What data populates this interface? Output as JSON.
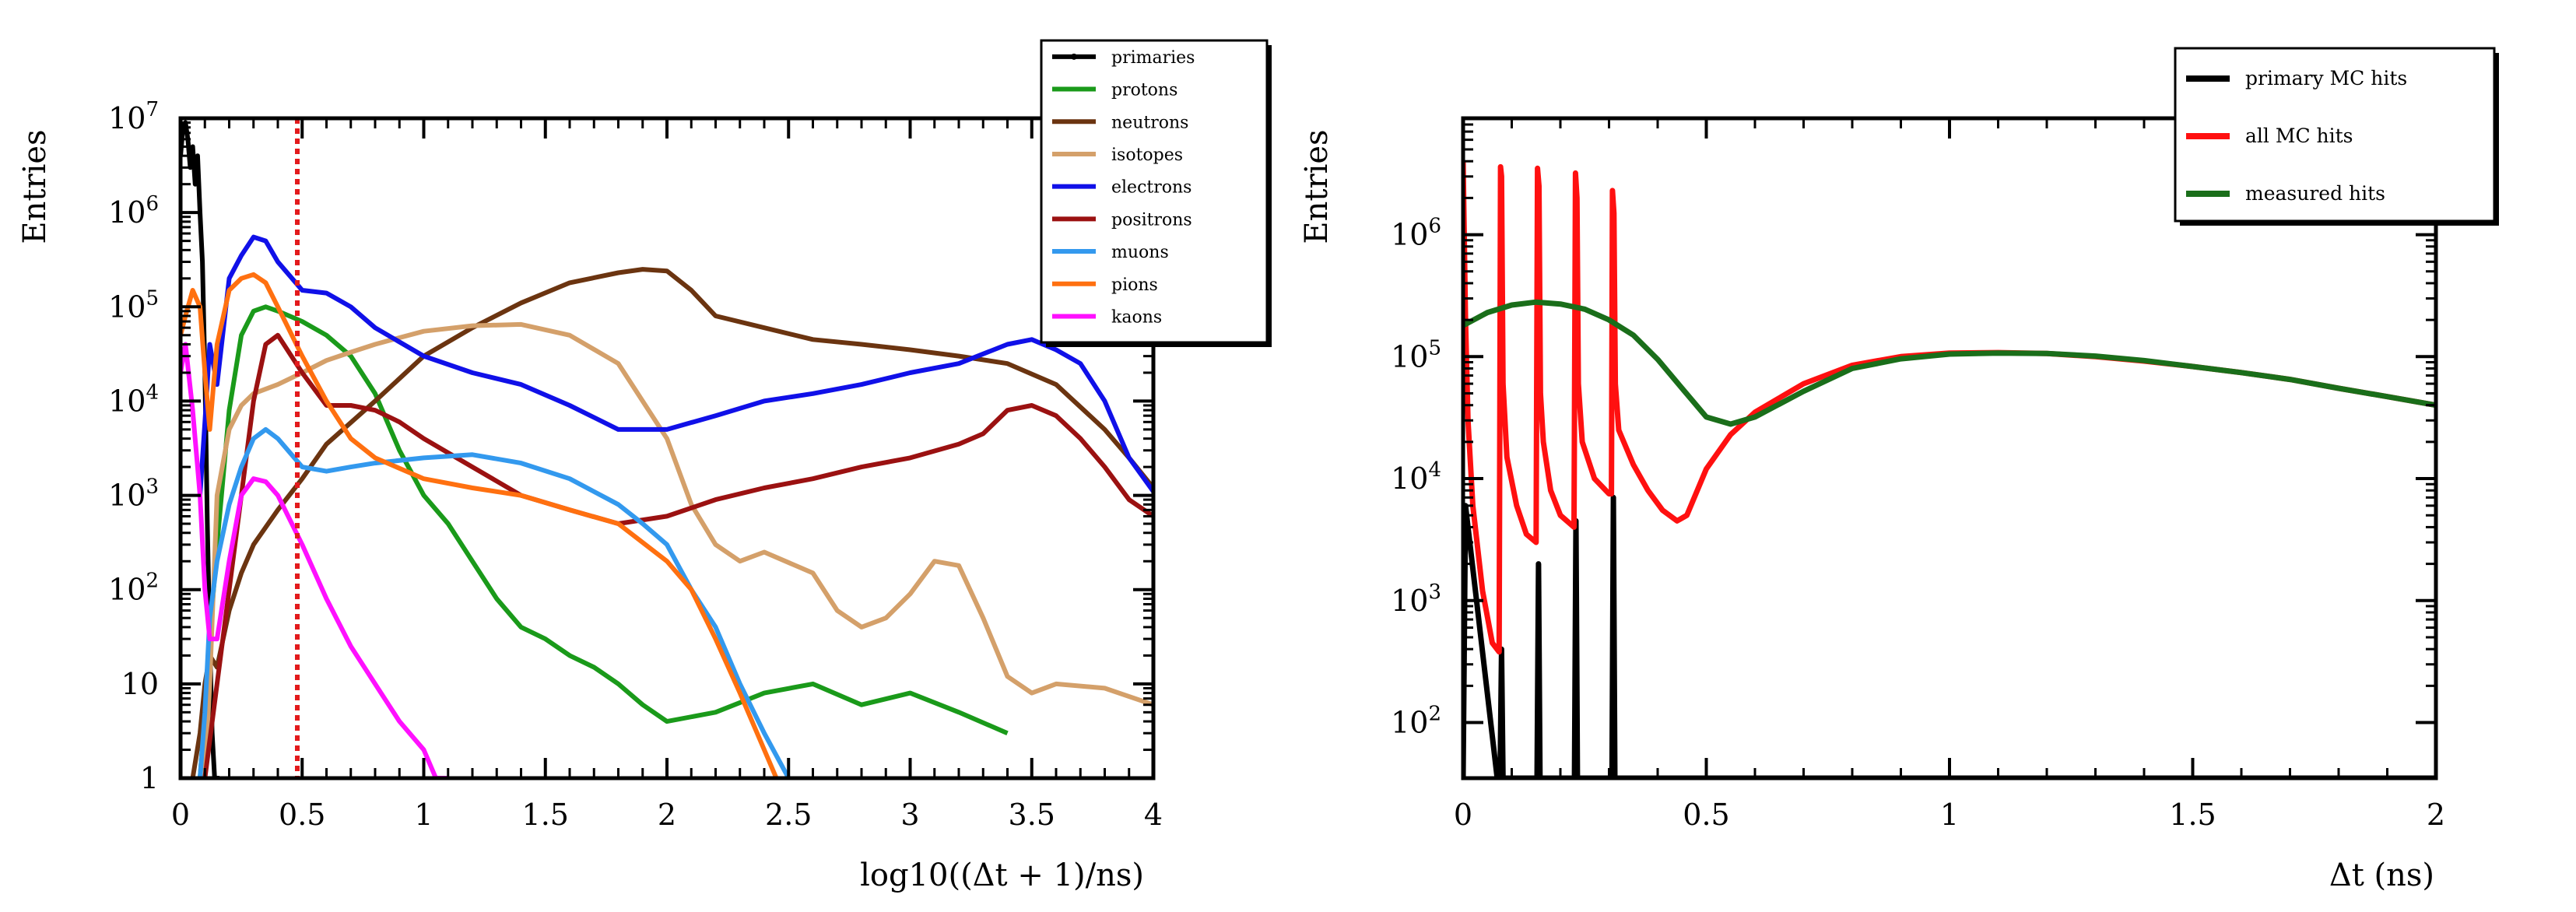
{
  "chart_data": [
    {
      "type": "line",
      "xlabel": "log10((Δt + 1)/ns)",
      "ylabel": "Entries",
      "xlim": [
        0,
        4
      ],
      "ylim": [
        1,
        10000000
      ],
      "yscale": "log",
      "xticks": [
        "0",
        "0.5",
        "1",
        "1.5",
        "2",
        "2.5",
        "3",
        "3.5",
        "4"
      ],
      "yticks": [
        {
          "value": 1,
          "label": "1"
        },
        {
          "value": 10,
          "label": "10"
        },
        {
          "value": 100,
          "label": "10^2"
        },
        {
          "value": 1000,
          "label": "10^3"
        },
        {
          "value": 10000,
          "label": "10^4"
        },
        {
          "value": 100000,
          "label": "10^5"
        },
        {
          "value": 1000000,
          "label": "10^6"
        },
        {
          "value": 10000000,
          "label": "10^7"
        }
      ],
      "legend_position": "top-right",
      "cut_line": {
        "x": 0.48,
        "color": "#e31a1c",
        "style": "dotted"
      },
      "series": [
        {
          "name": "primaries",
          "color": "#000000",
          "marker": true,
          "x": [
            0.0,
            0.01,
            0.02,
            0.03,
            0.04,
            0.05,
            0.06,
            0.07,
            0.08,
            0.09,
            0.1,
            0.11,
            0.12,
            0.13,
            0.14,
            0.15,
            0.16
          ],
          "y": [
            4000000,
            8000000,
            9000000,
            6000000,
            3000000,
            5000000,
            2000000,
            4000000,
            1000000,
            300000,
            20000,
            500,
            30,
            3,
            1,
            1,
            1
          ]
        },
        {
          "name": "protons",
          "color": "#1a9a1a",
          "x": [
            0.08,
            0.1,
            0.12,
            0.15,
            0.2,
            0.25,
            0.3,
            0.35,
            0.4,
            0.5,
            0.6,
            0.7,
            0.8,
            0.9,
            1.0,
            1.1,
            1.2,
            1.3,
            1.4,
            1.5,
            1.6,
            1.7,
            1.8,
            1.9,
            2.0,
            2.2,
            2.4,
            2.6,
            2.8,
            3.0,
            3.2,
            3.4
          ],
          "y": [
            1,
            5,
            30,
            300,
            8000,
            50000,
            90000,
            100000,
            90000,
            70000,
            50000,
            30000,
            12000,
            3000,
            1000,
            500,
            200,
            80,
            40,
            30,
            20,
            15,
            10,
            6,
            4,
            5,
            8,
            10,
            6,
            8,
            5,
            3
          ]
        },
        {
          "name": "neutrons",
          "color": "#6b3410",
          "x": [
            0.05,
            0.08,
            0.1,
            0.12,
            0.15,
            0.2,
            0.25,
            0.3,
            0.4,
            0.5,
            0.6,
            0.8,
            1.0,
            1.2,
            1.4,
            1.6,
            1.8,
            1.9,
            2.0,
            2.1,
            2.2,
            2.4,
            2.6,
            2.8,
            3.0,
            3.2,
            3.4,
            3.6,
            3.8,
            3.9,
            4.0
          ],
          "y": [
            1,
            3,
            10,
            20,
            15,
            60,
            150,
            300,
            700,
            1500,
            3500,
            10000,
            30000,
            60000,
            110000,
            180000,
            230000,
            250000,
            240000,
            150000,
            80000,
            60000,
            45000,
            40000,
            35000,
            30000,
            25000,
            15000,
            5000,
            2500,
            1200
          ]
        },
        {
          "name": "isotopes",
          "color": "#d4a06a",
          "x": [
            0.1,
            0.12,
            0.15,
            0.2,
            0.25,
            0.3,
            0.4,
            0.5,
            0.6,
            0.7,
            0.8,
            0.9,
            1.0,
            1.2,
            1.4,
            1.6,
            1.8,
            2.0,
            2.1,
            2.2,
            2.3,
            2.4,
            2.6,
            2.7,
            2.8,
            2.9,
            3.0,
            3.1,
            3.2,
            3.3,
            3.4,
            3.5,
            3.6,
            3.8,
            4.0
          ],
          "y": [
            1,
            10,
            1000,
            5000,
            9000,
            12000,
            15000,
            20000,
            27000,
            33000,
            40000,
            47000,
            55000,
            63000,
            65000,
            50000,
            25000,
            4000,
            800,
            300,
            200,
            250,
            150,
            60,
            40,
            50,
            90,
            200,
            180,
            50,
            12,
            8,
            10,
            9,
            6
          ]
        },
        {
          "name": "electrons",
          "color": "#1010e8",
          "x": [
            0.08,
            0.1,
            0.12,
            0.15,
            0.2,
            0.25,
            0.3,
            0.35,
            0.4,
            0.5,
            0.6,
            0.7,
            0.8,
            1.0,
            1.2,
            1.4,
            1.6,
            1.8,
            2.0,
            2.2,
            2.4,
            2.6,
            2.8,
            3.0,
            3.2,
            3.4,
            3.5,
            3.6,
            3.7,
            3.8,
            3.9,
            4.0
          ],
          "y": [
            1000,
            6000,
            40000,
            15000,
            200000,
            350000,
            550000,
            500000,
            300000,
            150000,
            140000,
            100000,
            60000,
            30000,
            20000,
            15000,
            9000,
            5000,
            5000,
            7000,
            10000,
            12000,
            15000,
            20000,
            25000,
            40000,
            45000,
            35000,
            25000,
            10000,
            2500,
            1100
          ]
        },
        {
          "name": "positrons",
          "color": "#9b1111",
          "x": [
            0.1,
            0.15,
            0.2,
            0.25,
            0.3,
            0.35,
            0.4,
            0.5,
            0.6,
            0.7,
            0.8,
            0.9,
            1.0,
            1.2,
            1.4,
            1.6,
            1.8,
            2.0,
            2.2,
            2.4,
            2.6,
            2.8,
            3.0,
            3.2,
            3.3,
            3.4,
            3.5,
            3.6,
            3.7,
            3.8,
            3.9,
            4.0
          ],
          "y": [
            1,
            10,
            100,
            1000,
            10000,
            40000,
            50000,
            20000,
            9000,
            9000,
            8000,
            6000,
            4000,
            2000,
            1000,
            700,
            500,
            600,
            900,
            1200,
            1500,
            2000,
            2500,
            3500,
            4500,
            8000,
            9000,
            7000,
            4000,
            2000,
            900,
            600
          ]
        },
        {
          "name": "muons",
          "color": "#3399ee",
          "x": [
            0.08,
            0.1,
            0.12,
            0.15,
            0.2,
            0.25,
            0.3,
            0.35,
            0.4,
            0.5,
            0.6,
            0.7,
            0.8,
            1.0,
            1.2,
            1.4,
            1.6,
            1.8,
            1.9,
            2.0,
            2.1,
            2.2,
            2.3,
            2.4,
            2.5
          ],
          "y": [
            1,
            5,
            50,
            200,
            800,
            2000,
            4000,
            5000,
            4000,
            2000,
            1800,
            2000,
            2200,
            2500,
            2700,
            2200,
            1500,
            800,
            500,
            300,
            100,
            40,
            10,
            3,
            1
          ]
        },
        {
          "name": "pions",
          "color": "#ff7010",
          "x": [
            0.0,
            0.02,
            0.05,
            0.08,
            0.1,
            0.12,
            0.15,
            0.2,
            0.25,
            0.3,
            0.35,
            0.4,
            0.5,
            0.6,
            0.7,
            0.8,
            1.0,
            1.2,
            1.4,
            1.6,
            1.8,
            2.0,
            2.1,
            2.2,
            2.3,
            2.4,
            2.45
          ],
          "y": [
            50000,
            80000,
            150000,
            100000,
            20000,
            5000,
            40000,
            150000,
            200000,
            220000,
            180000,
            100000,
            30000,
            10000,
            4000,
            2500,
            1500,
            1200,
            1000,
            700,
            500,
            200,
            100,
            30,
            8,
            2,
            1
          ]
        },
        {
          "name": "kaons",
          "color": "#ff10ff",
          "x": [
            0.0,
            0.02,
            0.05,
            0.08,
            0.1,
            0.12,
            0.15,
            0.2,
            0.25,
            0.3,
            0.35,
            0.4,
            0.5,
            0.6,
            0.7,
            0.8,
            0.9,
            1.0,
            1.05,
            1.1
          ],
          "y": [
            20000,
            40000,
            8000,
            1000,
            100,
            30,
            30,
            200,
            1000,
            1500,
            1400,
            1000,
            300,
            80,
            25,
            10,
            4,
            2,
            1,
            1
          ]
        }
      ]
    },
    {
      "type": "line",
      "xlabel": "Δt (ns)",
      "ylabel": "Entries",
      "xlim": [
        0,
        2
      ],
      "ylim": [
        35,
        9000000
      ],
      "yscale": "log",
      "xticks": [
        "0",
        "0.5",
        "1",
        "1.5",
        "2"
      ],
      "yticks": [
        {
          "value": 100,
          "label": "10^2"
        },
        {
          "value": 1000,
          "label": "10^3"
        },
        {
          "value": 10000,
          "label": "10^4"
        },
        {
          "value": 100000,
          "label": "10^5"
        },
        {
          "value": 1000000,
          "label": "10^6"
        }
      ],
      "legend_position": "top-right",
      "series": [
        {
          "name": "primary MC hits",
          "color": "#000000",
          "x": [
            0.0,
            0.005,
            0.07,
            0.076,
            0.079,
            0.082,
            0.085,
            0.15,
            0.152,
            0.155,
            0.158,
            0.16,
            0.227,
            0.229,
            0.232,
            0.235,
            0.238,
            0.304,
            0.306,
            0.309,
            0.312,
            0.315,
            0.4,
            1.0,
            2.0
          ],
          "y": [
            35,
            6000,
            35,
            35,
            400,
            35,
            35,
            35,
            35,
            2000,
            35,
            35,
            35,
            35,
            4500,
            35,
            35,
            35,
            35,
            7000,
            35,
            35,
            35,
            35,
            35
          ]
        },
        {
          "name": "all MC hits",
          "color": "#ff1010",
          "x": [
            0.0,
            0.005,
            0.01,
            0.02,
            0.04,
            0.06,
            0.074,
            0.077,
            0.079,
            0.082,
            0.09,
            0.11,
            0.13,
            0.15,
            0.153,
            0.156,
            0.159,
            0.165,
            0.18,
            0.2,
            0.228,
            0.231,
            0.234,
            0.237,
            0.245,
            0.27,
            0.3,
            0.305,
            0.307,
            0.31,
            0.313,
            0.32,
            0.35,
            0.38,
            0.41,
            0.44,
            0.46,
            0.5,
            0.55,
            0.6,
            0.7,
            0.8,
            0.9,
            1.0,
            1.1,
            1.2,
            1.3,
            1.4,
            1.5,
            1.6,
            1.7,
            1.8,
            1.9,
            2.0
          ],
          "y": [
            4000000,
            200000,
            30000,
            6000,
            1200,
            450,
            380,
            3600000,
            3000000,
            60000,
            15000,
            6000,
            3500,
            3000,
            3500000,
            2500000,
            50000,
            20000,
            8000,
            5000,
            4000,
            3200000,
            2000000,
            60000,
            20000,
            10000,
            7500,
            7500,
            2300000,
            1500000,
            60000,
            25000,
            13000,
            8000,
            5500,
            4500,
            5000,
            12000,
            23000,
            35000,
            60000,
            85000,
            100000,
            107000,
            108000,
            106000,
            100000,
            92000,
            83000,
            74000,
            65000,
            55000,
            47000,
            40000
          ]
        },
        {
          "name": "measured hits",
          "color": "#1a6e1a",
          "x": [
            0.0,
            0.05,
            0.1,
            0.15,
            0.2,
            0.25,
            0.3,
            0.35,
            0.4,
            0.45,
            0.5,
            0.55,
            0.6,
            0.7,
            0.8,
            0.9,
            1.0,
            1.1,
            1.2,
            1.3,
            1.4,
            1.5,
            1.6,
            1.7,
            1.8,
            1.9,
            2.0
          ],
          "y": [
            180000,
            230000,
            265000,
            280000,
            270000,
            245000,
            200000,
            150000,
            95000,
            55000,
            32000,
            28000,
            32000,
            52000,
            80000,
            96000,
            105000,
            107000,
            106000,
            101000,
            93000,
            83000,
            74000,
            65000,
            55000,
            47000,
            40000
          ]
        }
      ]
    }
  ]
}
